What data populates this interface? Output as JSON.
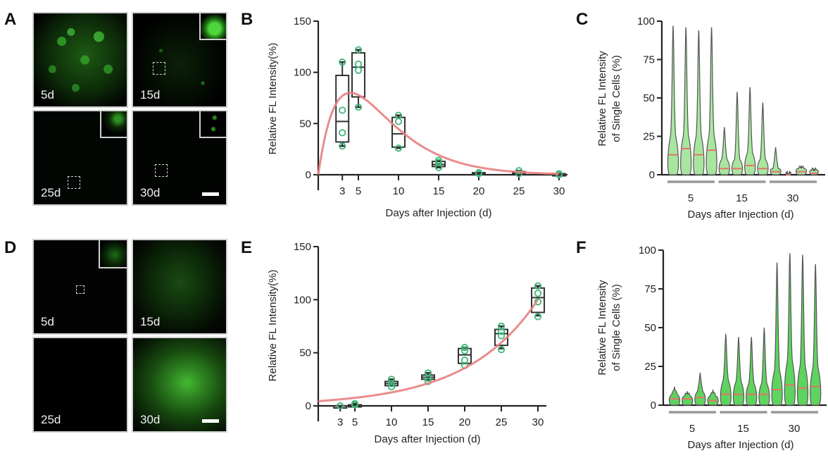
{
  "panels": {
    "A": {
      "label": "A",
      "images": [
        {
          "day_label": "5d",
          "has_inset": false,
          "brightness": "high"
        },
        {
          "day_label": "15d",
          "has_inset": true,
          "brightness": "low"
        },
        {
          "day_label": "25d",
          "has_inset": true,
          "brightness": "very-low"
        },
        {
          "day_label": "30d",
          "has_inset": true,
          "brightness": "very-low",
          "scale_bar": true
        }
      ]
    },
    "D": {
      "label": "D",
      "images": [
        {
          "day_label": "5d",
          "has_inset": true,
          "brightness": "very-low"
        },
        {
          "day_label": "15d",
          "has_inset": false,
          "brightness": "low"
        },
        {
          "day_label": "25d",
          "has_inset": false,
          "brightness": "medium"
        },
        {
          "day_label": "30d",
          "has_inset": false,
          "brightness": "high",
          "scale_bar": true
        }
      ]
    },
    "B": {
      "label": "B"
    },
    "C": {
      "label": "C"
    },
    "E": {
      "label": "E"
    },
    "F": {
      "label": "F"
    }
  },
  "colors": {
    "box": "#333333",
    "points": "#3cb878",
    "fit": "#e88080",
    "violin_fill": "#5fd35f",
    "violin_light": "#a8e6a0",
    "median": "#e8706a",
    "group_bar": "#999999"
  },
  "chart_data": [
    {
      "id": "B",
      "type": "box",
      "title": "",
      "xlabel": "Days after Injection (d)",
      "ylabel": "Relative FL Intensity(%)",
      "ylim": [
        0,
        150
      ],
      "yticks": [
        0,
        50,
        100,
        150
      ],
      "xticks": [
        3,
        5,
        10,
        15,
        20,
        25,
        30
      ],
      "boxes": [
        {
          "x": 3,
          "min": 28,
          "q1": 32,
          "median": 52,
          "q3": 97,
          "max": 110,
          "points": [
            28,
            41,
            63,
            110
          ]
        },
        {
          "x": 5,
          "min": 66,
          "q1": 76,
          "median": 105,
          "q3": 119,
          "max": 122,
          "points": [
            66,
            102,
            108,
            122
          ]
        },
        {
          "x": 10,
          "min": 26,
          "q1": 27,
          "median": 40,
          "q3": 56,
          "max": 58,
          "points": [
            26,
            52,
            58
          ]
        },
        {
          "x": 15,
          "min": 7,
          "q1": 8,
          "median": 10,
          "q3": 13,
          "max": 14,
          "points": [
            7,
            12,
            14
          ]
        },
        {
          "x": 20,
          "min": 1,
          "q1": 1,
          "median": 1,
          "q3": 2,
          "max": 2,
          "points": [
            1,
            2
          ]
        },
        {
          "x": 25,
          "min": 1,
          "q1": 1,
          "median": 2,
          "q3": 3,
          "max": 4,
          "points": [
            1,
            4
          ]
        },
        {
          "x": 30,
          "min": 0,
          "q1": 0,
          "median": 0,
          "q3": 1,
          "max": 1,
          "points": [
            0,
            1
          ]
        }
      ],
      "fit_curve": {
        "description": "gamma-like rise then decay",
        "x": [
          0,
          1,
          2,
          3,
          4,
          5,
          6,
          8,
          10,
          12,
          15,
          18,
          20,
          25,
          30
        ],
        "y": [
          0,
          45,
          68,
          78,
          80,
          78,
          73,
          61,
          45,
          33,
          18,
          9,
          6,
          2,
          0.5
        ]
      }
    },
    {
      "id": "C",
      "type": "violin",
      "xlabel": "Days after Injection (d)",
      "ylabel": "Relative FL Intensity of Single Cells (%)",
      "ylim": [
        0,
        100
      ],
      "yticks": [
        0,
        25,
        50,
        75,
        100
      ],
      "groups": [
        "5",
        "15",
        "30"
      ],
      "violins": [
        {
          "group": "5",
          "max": 97,
          "median": 13,
          "bulk": 25
        },
        {
          "group": "5",
          "max": 96,
          "median": 17,
          "bulk": 25
        },
        {
          "group": "5",
          "max": 94,
          "median": 13,
          "bulk": 25
        },
        {
          "group": "5",
          "max": 96,
          "median": 16,
          "bulk": 25
        },
        {
          "group": "15",
          "max": 31,
          "median": 4,
          "bulk": 10
        },
        {
          "group": "15",
          "max": 54,
          "median": 4,
          "bulk": 10
        },
        {
          "group": "15",
          "max": 57,
          "median": 6,
          "bulk": 14
        },
        {
          "group": "15",
          "max": 47,
          "median": 4,
          "bulk": 10
        },
        {
          "group": "30",
          "max": 18,
          "median": 2,
          "bulk": 4
        },
        {
          "group": "30",
          "max": 1,
          "median": 0,
          "bulk": 1
        },
        {
          "group": "30",
          "max": 6,
          "median": 2,
          "bulk": 4
        },
        {
          "group": "30",
          "max": 4,
          "median": 1,
          "bulk": 3
        }
      ]
    },
    {
      "id": "E",
      "type": "box",
      "xlabel": "Days after Injection (d)",
      "ylabel": "Relative FL Intensity(%)",
      "ylim": [
        0,
        150
      ],
      "yticks": [
        0,
        50,
        100,
        150
      ],
      "xticks": [
        3,
        5,
        10,
        15,
        20,
        25,
        30
      ],
      "boxes": [
        {
          "x": 3,
          "min": 0,
          "q1": 0,
          "median": 0,
          "q3": 0,
          "max": 0,
          "points": [
            0
          ]
        },
        {
          "x": 5,
          "min": 0,
          "q1": 0,
          "median": 1,
          "q3": 1,
          "max": 2,
          "points": [
            1,
            2
          ]
        },
        {
          "x": 10,
          "min": 19,
          "q1": 19,
          "median": 21,
          "q3": 23,
          "max": 25,
          "points": [
            18,
            21,
            25
          ]
        },
        {
          "x": 15,
          "min": 24,
          "q1": 25,
          "median": 27,
          "q3": 29,
          "max": 31,
          "points": [
            23,
            26,
            31
          ]
        },
        {
          "x": 20,
          "min": 40,
          "q1": 40,
          "median": 48,
          "q3": 54,
          "max": 55,
          "points": [
            38,
            43,
            52,
            55
          ]
        },
        {
          "x": 25,
          "min": 54,
          "q1": 57,
          "median": 68,
          "q3": 72,
          "max": 75,
          "points": [
            53,
            66,
            70,
            75
          ]
        },
        {
          "x": 30,
          "min": 85,
          "q1": 88,
          "median": 102,
          "q3": 111,
          "max": 113,
          "points": [
            84,
            98,
            106,
            113
          ]
        }
      ],
      "fit_curve": {
        "description": "exponential growth",
        "x": [
          0,
          5,
          10,
          15,
          20,
          25,
          30
        ],
        "y": [
          2,
          7,
          16,
          27,
          42,
          65,
          100
        ]
      }
    },
    {
      "id": "F",
      "type": "violin",
      "xlabel": "Days after Injection (d)",
      "ylabel": "Relative FL Intensity of Single Cells (%)",
      "ylim": [
        0,
        100
      ],
      "yticks": [
        0,
        25,
        50,
        75,
        100
      ],
      "groups": [
        "5",
        "15",
        "30"
      ],
      "violins": [
        {
          "group": "5",
          "max": 12,
          "median": 4,
          "bulk": 7
        },
        {
          "group": "5",
          "max": 9,
          "median": 4,
          "bulk": 6
        },
        {
          "group": "5",
          "max": 21,
          "median": 5,
          "bulk": 9
        },
        {
          "group": "5",
          "max": 10,
          "median": 3,
          "bulk": 6
        },
        {
          "group": "15",
          "max": 46,
          "median": 7,
          "bulk": 16
        },
        {
          "group": "15",
          "max": 44,
          "median": 7,
          "bulk": 15
        },
        {
          "group": "15",
          "max": 44,
          "median": 7,
          "bulk": 14
        },
        {
          "group": "15",
          "max": 50,
          "median": 7,
          "bulk": 14
        },
        {
          "group": "30",
          "max": 92,
          "median": 10,
          "bulk": 22
        },
        {
          "group": "30",
          "max": 98,
          "median": 13,
          "bulk": 28
        },
        {
          "group": "30",
          "max": 97,
          "median": 11,
          "bulk": 25
        },
        {
          "group": "30",
          "max": 91,
          "median": 12,
          "bulk": 24
        }
      ]
    }
  ]
}
